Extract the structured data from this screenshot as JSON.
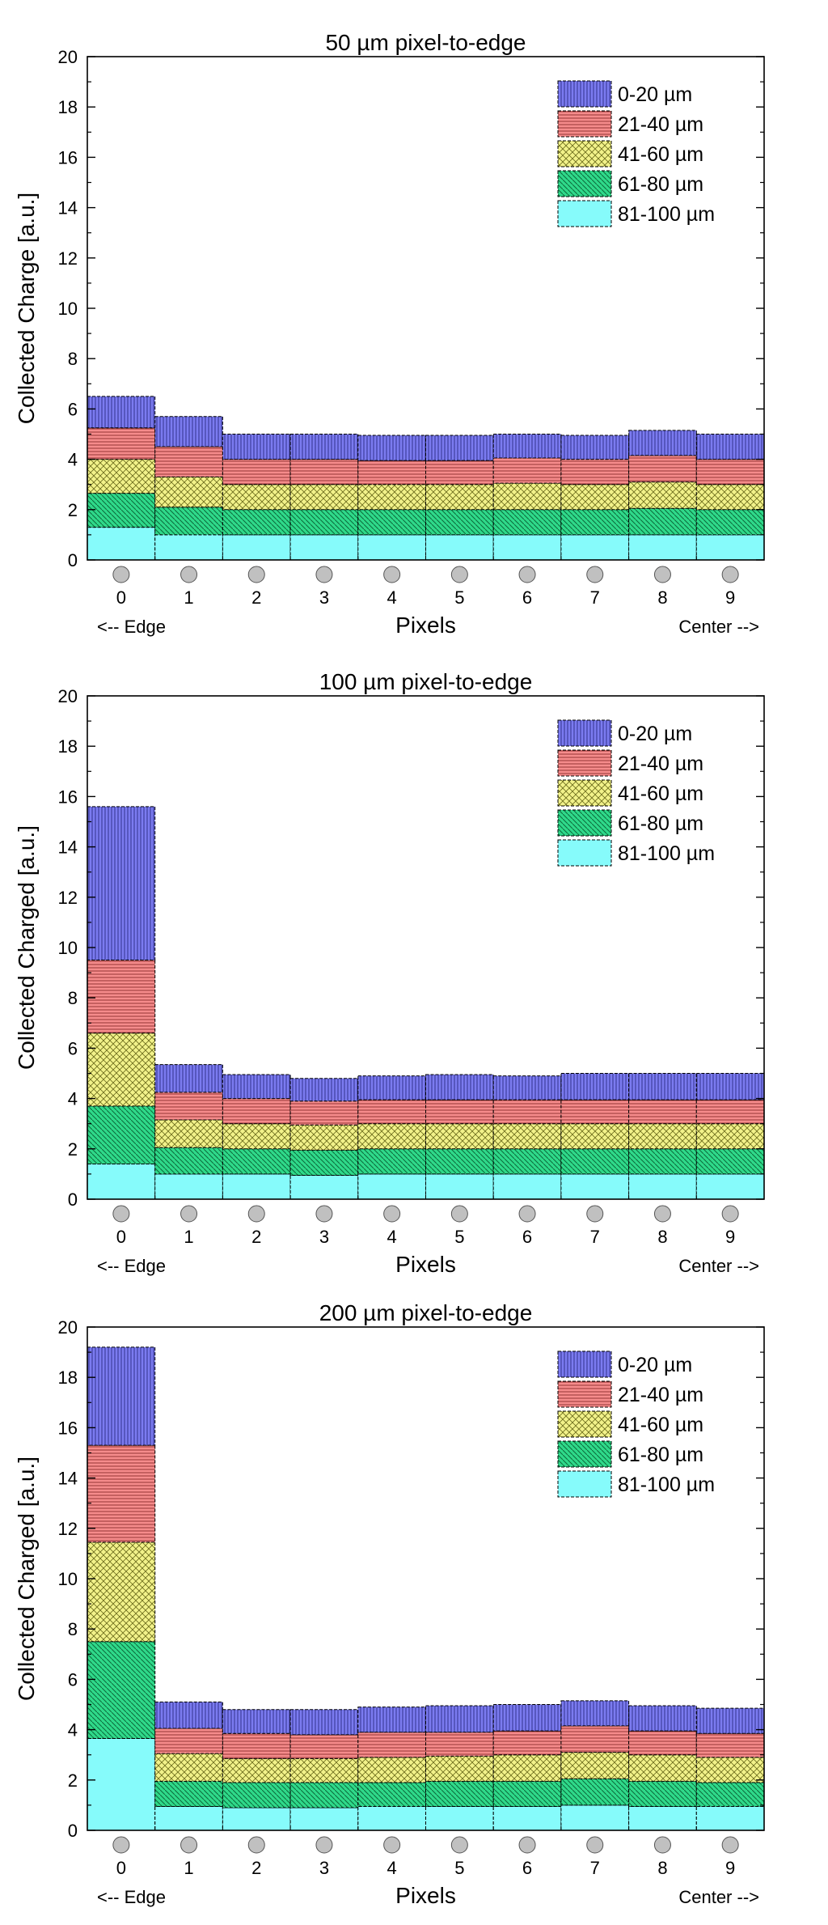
{
  "colors": {
    "layer_0_20": "#7b7bf0",
    "layer_21_40": "#f58b8b",
    "layer_41_60": "#f2f28a",
    "layer_61_80": "#2fd98a",
    "layer_81_100": "#86fbfb",
    "pixel_marker": "#c0c0c0"
  },
  "chart_data": [
    {
      "type": "bar",
      "stacked": true,
      "title": "50 µm pixel-to-edge",
      "xlabel": "Pixels",
      "ylabel": "Collected Charge [a.u.]",
      "left_note": "<-- Edge",
      "right_note": "Center -->",
      "ylim": [
        0,
        20
      ],
      "yticks": [
        0,
        2,
        4,
        6,
        8,
        10,
        12,
        14,
        16,
        18,
        20
      ],
      "categories": [
        "0",
        "1",
        "2",
        "3",
        "4",
        "5",
        "6",
        "7",
        "8",
        "9"
      ],
      "legend_position": "top-right",
      "series": [
        {
          "name": "81-100 µm",
          "color_key": "layer_81_100",
          "values": [
            1.3,
            1.0,
            1.0,
            1.0,
            1.0,
            1.0,
            1.0,
            1.0,
            1.0,
            1.0
          ]
        },
        {
          "name": "61-80 µm",
          "color_key": "layer_61_80",
          "values": [
            1.35,
            1.1,
            1.0,
            1.0,
            1.0,
            1.0,
            1.0,
            1.0,
            1.05,
            1.0
          ]
        },
        {
          "name": "41-60 µm",
          "color_key": "layer_41_60",
          "values": [
            1.35,
            1.2,
            1.0,
            1.0,
            1.0,
            1.0,
            1.05,
            1.0,
            1.05,
            1.0
          ]
        },
        {
          "name": "21-40 µm",
          "color_key": "layer_21_40",
          "values": [
            1.25,
            1.2,
            1.0,
            1.0,
            0.95,
            0.95,
            1.0,
            1.0,
            1.05,
            1.0
          ]
        },
        {
          "name": "0-20 µm",
          "color_key": "layer_0_20",
          "values": [
            1.25,
            1.2,
            1.0,
            1.0,
            1.0,
            1.0,
            0.95,
            0.95,
            1.0,
            1.0
          ]
        }
      ]
    },
    {
      "type": "bar",
      "stacked": true,
      "title": "100 µm pixel-to-edge",
      "xlabel": "Pixels",
      "ylabel": "Collected Charged [a.u.]",
      "left_note": "<-- Edge",
      "right_note": "Center -->",
      "ylim": [
        0,
        20
      ],
      "yticks": [
        0,
        2,
        4,
        6,
        8,
        10,
        12,
        14,
        16,
        18,
        20
      ],
      "categories": [
        "0",
        "1",
        "2",
        "3",
        "4",
        "5",
        "6",
        "7",
        "8",
        "9"
      ],
      "legend_position": "top-right",
      "series": [
        {
          "name": "81-100 µm",
          "color_key": "layer_81_100",
          "values": [
            1.4,
            1.0,
            1.0,
            0.95,
            1.0,
            1.0,
            1.0,
            1.0,
            1.0,
            1.0
          ]
        },
        {
          "name": "61-80 µm",
          "color_key": "layer_61_80",
          "values": [
            2.3,
            1.05,
            1.0,
            1.0,
            1.0,
            1.0,
            1.0,
            1.0,
            1.0,
            1.0
          ]
        },
        {
          "name": "41-60 µm",
          "color_key": "layer_41_60",
          "values": [
            2.9,
            1.1,
            1.0,
            1.0,
            1.0,
            1.0,
            1.0,
            1.0,
            1.0,
            1.0
          ]
        },
        {
          "name": "21-40 µm",
          "color_key": "layer_21_40",
          "values": [
            2.9,
            1.1,
            1.0,
            0.95,
            0.95,
            0.95,
            0.95,
            0.95,
            0.95,
            0.95
          ]
        },
        {
          "name": "0-20 µm",
          "color_key": "layer_0_20",
          "values": [
            6.1,
            1.1,
            0.95,
            0.9,
            0.95,
            1.0,
            0.95,
            1.05,
            1.05,
            1.05
          ]
        }
      ]
    },
    {
      "type": "bar",
      "stacked": true,
      "title": "200 µm pixel-to-edge",
      "xlabel": "Pixels",
      "ylabel": "Collected Charged [a.u.]",
      "left_note": "<-- Edge",
      "right_note": "Center -->",
      "ylim": [
        0,
        20
      ],
      "yticks": [
        0,
        2,
        4,
        6,
        8,
        10,
        12,
        14,
        16,
        18,
        20
      ],
      "categories": [
        "0",
        "1",
        "2",
        "3",
        "4",
        "5",
        "6",
        "7",
        "8",
        "9"
      ],
      "legend_position": "top-right",
      "series": [
        {
          "name": "81-100 µm",
          "color_key": "layer_81_100",
          "values": [
            3.65,
            0.95,
            0.9,
            0.9,
            0.95,
            0.95,
            0.95,
            1.0,
            0.95,
            0.95
          ]
        },
        {
          "name": "61-80 µm",
          "color_key": "layer_61_80",
          "values": [
            3.85,
            1.0,
            1.0,
            1.0,
            0.95,
            1.0,
            1.0,
            1.05,
            1.0,
            0.95
          ]
        },
        {
          "name": "41-60 µm",
          "color_key": "layer_41_60",
          "values": [
            3.95,
            1.1,
            0.95,
            0.95,
            1.0,
            1.0,
            1.05,
            1.05,
            1.05,
            1.0
          ]
        },
        {
          "name": "21-40 µm",
          "color_key": "layer_21_40",
          "values": [
            3.85,
            1.0,
            1.0,
            0.95,
            1.0,
            0.95,
            0.95,
            1.05,
            0.95,
            0.95
          ]
        },
        {
          "name": "0-20 µm",
          "color_key": "layer_0_20",
          "values": [
            3.9,
            1.05,
            0.95,
            1.0,
            1.0,
            1.05,
            1.05,
            1.0,
            1.0,
            1.0
          ]
        }
      ]
    }
  ]
}
